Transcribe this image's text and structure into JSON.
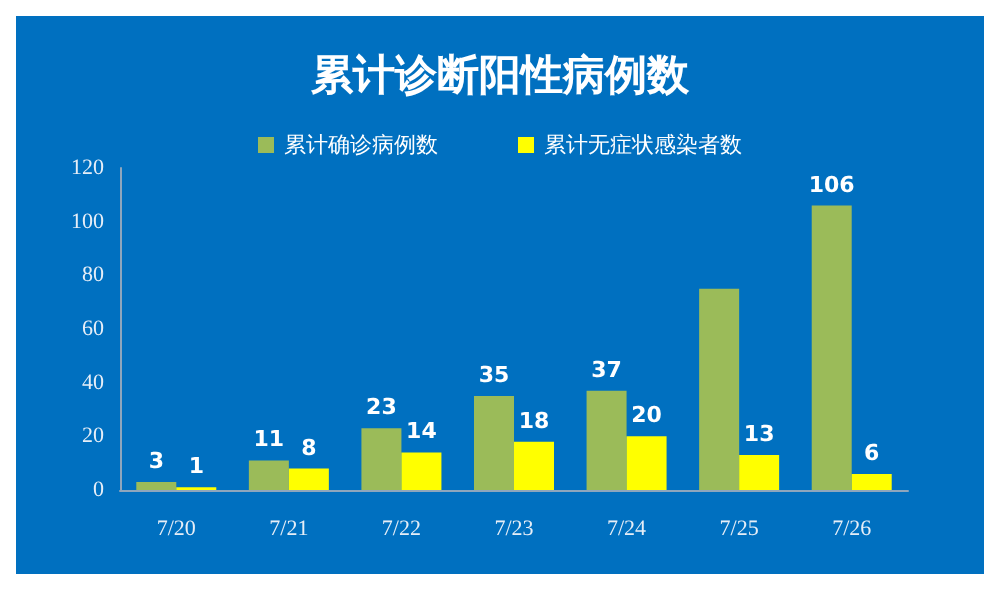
{
  "chart_data": {
    "type": "bar",
    "title": "累计诊断阳性病例数",
    "categories": [
      "7/20",
      "7/21",
      "7/22",
      "7/23",
      "7/24",
      "7/25",
      "7/26"
    ],
    "series": [
      {
        "name": "累计确诊病例数",
        "color": "#9bbb59",
        "values": [
          3,
          11,
          23,
          35,
          37,
          75,
          106
        ],
        "value_labels": [
          "3",
          "11",
          "23",
          "35",
          "37",
          null,
          "106"
        ]
      },
      {
        "name": "累计无症状感染者数",
        "color": "#ffff00",
        "values": [
          1,
          8,
          14,
          18,
          20,
          13,
          6
        ],
        "value_labels": [
          "1",
          "8",
          "14",
          "18",
          "20",
          "13",
          "6"
        ]
      }
    ],
    "ylim": [
      0,
      120
    ],
    "yticks": [
      0,
      20,
      40,
      60,
      80,
      100,
      120
    ],
    "grid": false,
    "legend": "top"
  }
}
